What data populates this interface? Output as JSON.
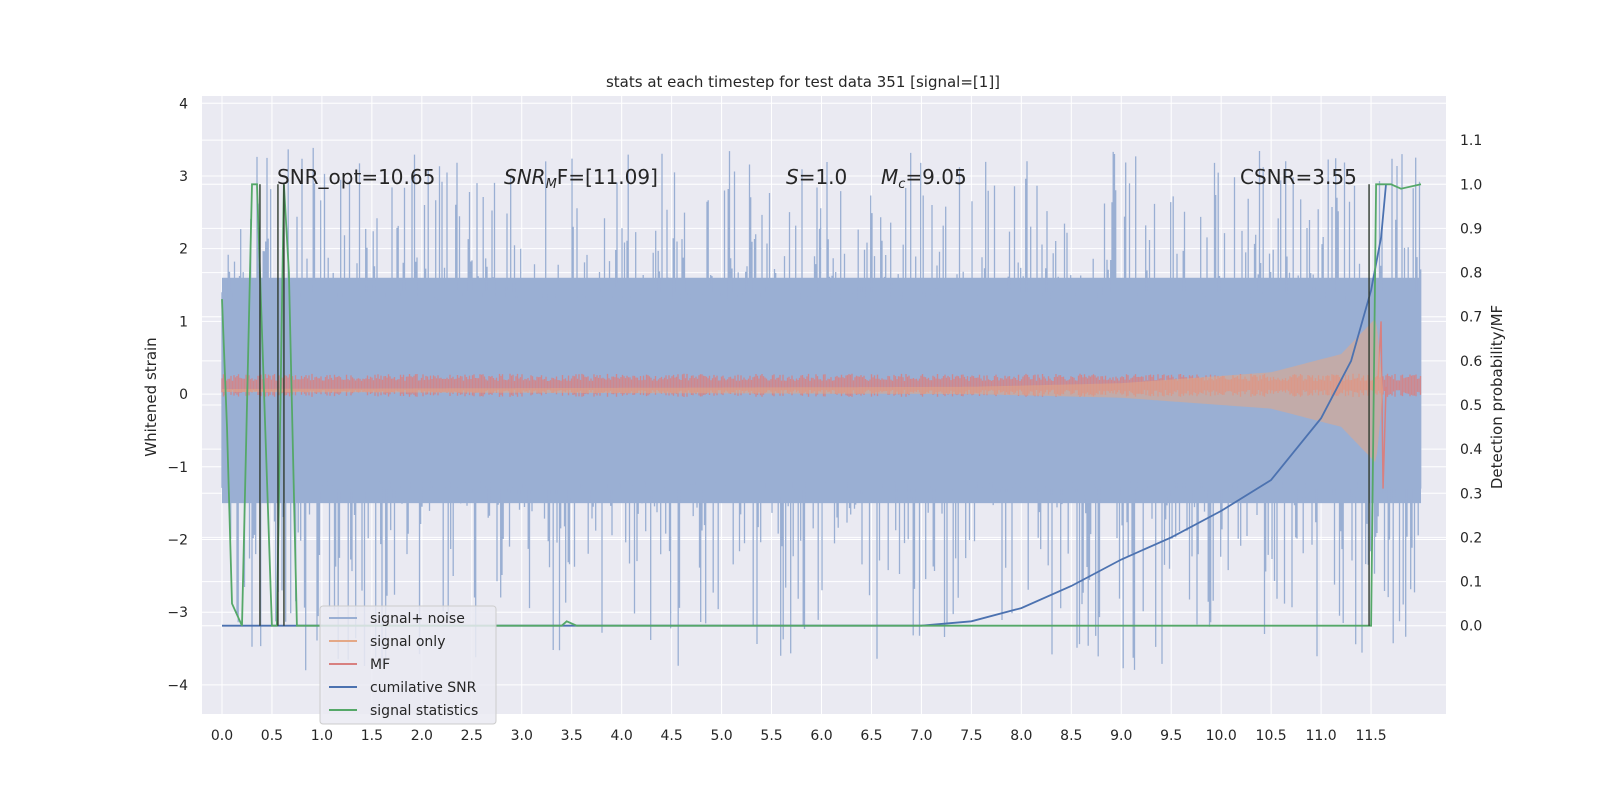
{
  "chart_data": {
    "type": "line",
    "title": "stats at each timestep for test data 351 [signal=[1]]",
    "ylabel": "Whitened strain",
    "y2label": "Detection probability/MF",
    "xlim": [
      -0.2,
      12.25
    ],
    "ylim": [
      -4.4,
      4.1
    ],
    "y2lim": [
      -0.2,
      1.2
    ],
    "x_ticks": [
      "0.0",
      "0.5",
      "1.0",
      "1.5",
      "2.0",
      "2.5",
      "3.0",
      "3.5",
      "4.0",
      "4.5",
      "5.0",
      "5.5",
      "6.0",
      "6.5",
      "7.0",
      "7.5",
      "8.0",
      "8.5",
      "9.0",
      "9.5",
      "10.0",
      "10.5",
      "11.0",
      "11.5"
    ],
    "y_ticks": [
      "4",
      "3",
      "2",
      "1",
      "0",
      "−1",
      "−2",
      "−3",
      "−4"
    ],
    "y2_ticks": [
      "1.1",
      "1.0",
      "0.9",
      "0.8",
      "0.7",
      "0.6",
      "0.5",
      "0.4",
      "0.3",
      "0.2",
      "0.1",
      "0.0"
    ],
    "annotations": {
      "snr_opt": "SNR_opt=10.65",
      "snr_mf_prefix": "SNR",
      "snr_mf_sub": "M",
      "snr_mf_suffix": "F=[11.09]",
      "s_var": "S",
      "s_val": "=1.0",
      "mc_var": "M",
      "mc_sub": "c",
      "mc_val": "=9.05",
      "csnr": "CSNR=3.55"
    },
    "grid": true,
    "legend_position": "lower left",
    "series": [
      {
        "name": "signal+ noise",
        "color": "#9aafd3",
        "axis": "left",
        "x_range": [
          0.0,
          12.0
        ],
        "band": [
          -1.5,
          1.6
        ],
        "peak_max": 3.7,
        "peak_min": -4.1
      },
      {
        "name": "signal only",
        "color": "#e4a887",
        "axis": "left",
        "chirp": {
          "x": [
            0.0,
            7.5,
            9.0,
            10.5,
            11.2,
            11.55,
            11.62
          ],
          "amp": [
            0.02,
            0.05,
            0.1,
            0.25,
            0.5,
            1.0,
            0.0
          ]
        }
      },
      {
        "name": "MF",
        "color": "#d88080",
        "axis": "left",
        "x_range": [
          0.0,
          12.0
        ],
        "center": 0.12,
        "band": [
          0.0,
          0.25
        ],
        "peak_x": 11.6,
        "peak_y": 1.0,
        "trough_y": -1.3
      },
      {
        "name": "cumilative SNR",
        "color": "#4c72b0",
        "axis": "right",
        "x": [
          0.0,
          7.0,
          7.5,
          8.0,
          8.5,
          9.0,
          9.5,
          10.0,
          10.5,
          11.0,
          11.3,
          11.5,
          11.6,
          11.65
        ],
        "y": [
          0.0,
          0.0,
          0.01,
          0.04,
          0.09,
          0.15,
          0.2,
          0.26,
          0.33,
          0.47,
          0.6,
          0.76,
          0.88,
          1.0
        ]
      },
      {
        "name": "signal statistics",
        "color": "#55a868",
        "axis": "right",
        "x": [
          0.0,
          0.05,
          0.1,
          0.2,
          0.3,
          0.35,
          0.5,
          0.55,
          0.62,
          0.67,
          0.75,
          1.0,
          3.4,
          3.45,
          3.55,
          4.0,
          11.5,
          11.55,
          11.7,
          11.8,
          12.0
        ],
        "y": [
          0.74,
          0.45,
          0.05,
          0.0,
          1.0,
          1.0,
          0.0,
          0.0,
          1.0,
          0.8,
          0.0,
          0.0,
          0.0,
          0.01,
          0.0,
          0.0,
          0.0,
          1.0,
          1.0,
          0.99,
          1.0
        ]
      }
    ]
  }
}
